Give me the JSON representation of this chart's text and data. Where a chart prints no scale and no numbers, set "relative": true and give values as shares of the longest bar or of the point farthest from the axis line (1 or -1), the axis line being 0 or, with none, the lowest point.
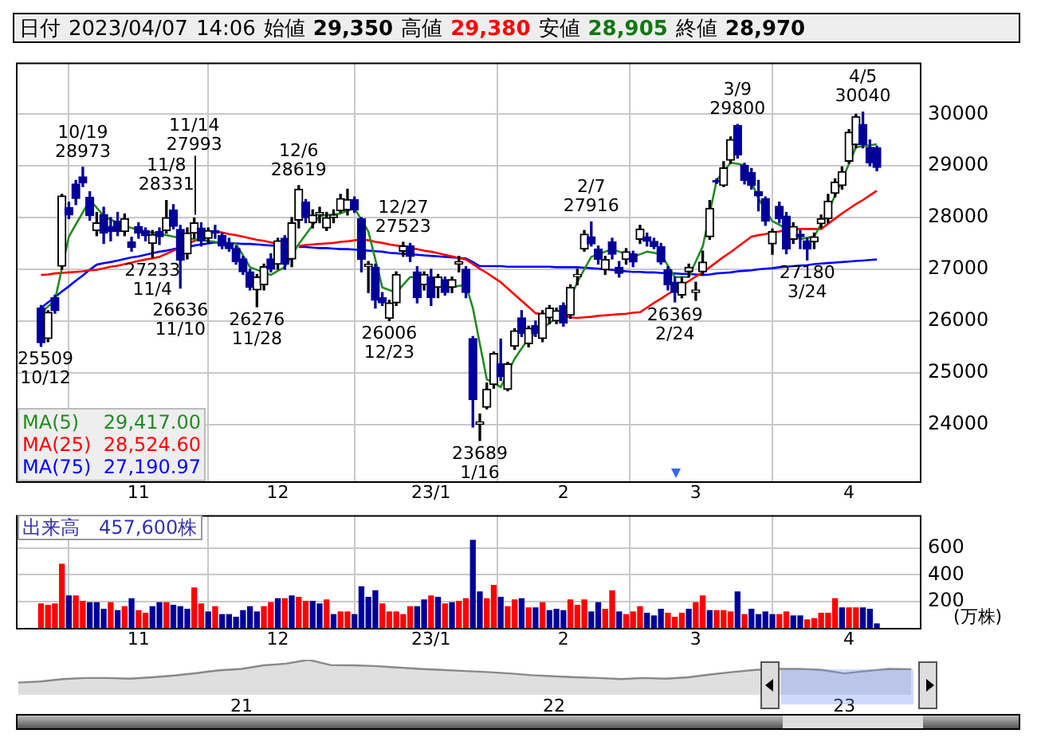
{
  "chart_data": [
    {
      "type": "candlestick",
      "title": "日付 2023/04/07 14:06 始値 29,350 高値 29,380 安値 28,905 終値 28,970",
      "categories": [
        null,
        null,
        null,
        null,
        null,
        null,
        null,
        null,
        null,
        null,
        null,
        null,
        null,
        null,
        "11",
        null,
        null,
        null,
        null,
        null,
        null,
        null,
        null,
        null,
        null,
        null,
        null,
        null,
        null,
        null,
        null,
        null,
        null,
        null,
        "12",
        null,
        null,
        null,
        null,
        null,
        null,
        null,
        null,
        null,
        null,
        null,
        null,
        null,
        null,
        null,
        null,
        null,
        null,
        null,
        null,
        null,
        "23/1",
        null,
        null,
        null,
        null,
        null,
        null,
        null,
        null,
        null,
        null,
        null,
        null,
        null,
        null,
        null,
        null,
        null,
        null,
        "2",
        null,
        null,
        null,
        null,
        null,
        null,
        null,
        null,
        null,
        null,
        null,
        null,
        null,
        null,
        null,
        null,
        null,
        null,
        "3",
        null,
        null,
        null,
        null,
        null,
        null,
        null,
        null,
        null,
        null,
        null,
        null,
        null,
        null,
        null,
        null,
        null,
        null,
        null,
        null,
        null,
        "4",
        null,
        null,
        null,
        null
      ],
      "ohlc": [
        [
          26250,
          26300,
          25509,
          25580
        ],
        [
          25660,
          26200,
          25600,
          26170
        ],
        [
          26450,
          26500,
          26150,
          26200
        ],
        [
          27060,
          28450,
          27000,
          28420
        ],
        [
          28190,
          28300,
          27980,
          28050
        ],
        [
          28650,
          28720,
          28250,
          28370
        ],
        [
          28790,
          28973,
          28600,
          28670
        ],
        [
          28390,
          28500,
          27950,
          28040
        ],
        [
          27750,
          28100,
          27650,
          27900
        ],
        [
          28060,
          28200,
          27500,
          27700
        ],
        [
          27830,
          28000,
          27550,
          27730
        ],
        [
          27930,
          28100,
          27650,
          27730
        ],
        [
          27730,
          28070,
          27650,
          27980
        ],
        [
          27530,
          27620,
          27350,
          27420
        ],
        [
          27830,
          27900,
          27600,
          27700
        ],
        [
          27750,
          27800,
          27550,
          27650
        ],
        [
          27500,
          27750,
          27233,
          27670
        ],
        [
          27730,
          27800,
          27480,
          27630
        ],
        [
          27750,
          28331,
          27700,
          28000
        ],
        [
          28150,
          28250,
          27780,
          27830
        ],
        [
          27770,
          27850,
          26636,
          27180
        ],
        [
          27300,
          27800,
          27200,
          27700
        ],
        [
          27700,
          27993,
          27600,
          27900
        ],
        [
          27800,
          27900,
          27450,
          27550
        ],
        [
          27600,
          27800,
          27500,
          27750
        ],
        [
          27750,
          27850,
          27600,
          27700
        ],
        [
          27650,
          27700,
          27400,
          27450
        ],
        [
          27500,
          27600,
          27350,
          27400
        ],
        [
          27400,
          27450,
          27100,
          27150
        ],
        [
          27200,
          27250,
          26900,
          26950
        ],
        [
          26950,
          27000,
          26600,
          26650
        ],
        [
          26600,
          26900,
          26276,
          26850
        ],
        [
          26700,
          27100,
          26600,
          27050
        ],
        [
          27200,
          27300,
          26950,
          27000
        ],
        [
          27100,
          27600,
          27000,
          27550
        ],
        [
          27600,
          27650,
          27000,
          27100
        ],
        [
          27200,
          28000,
          27050,
          27900
        ],
        [
          27950,
          28619,
          27800,
          28550
        ],
        [
          28300,
          28350,
          27900,
          28000
        ],
        [
          27900,
          28150,
          27800,
          28050
        ],
        [
          28050,
          28200,
          27900,
          28100
        ],
        [
          27800,
          28100,
          27750,
          28000
        ],
        [
          28000,
          28150,
          27900,
          28050
        ],
        [
          28130,
          28450,
          28100,
          28370
        ],
        [
          28150,
          28550,
          28050,
          28350
        ],
        [
          28350,
          28400,
          28100,
          28150
        ],
        [
          27980,
          28000,
          26950,
          27190
        ],
        [
          27050,
          27150,
          26550,
          27100
        ],
        [
          27040,
          27100,
          26250,
          26400
        ],
        [
          26450,
          26550,
          26300,
          26350
        ],
        [
          26050,
          26400,
          26006,
          26350
        ],
        [
          26350,
          26950,
          26300,
          26900
        ],
        [
          27350,
          27523,
          27250,
          27450
        ],
        [
          27450,
          27500,
          27150,
          27250
        ],
        [
          26950,
          27050,
          26350,
          26450
        ],
        [
          26700,
          26950,
          26600,
          26900
        ],
        [
          26850,
          27000,
          26300,
          26450
        ],
        [
          26650,
          26900,
          26450,
          26850
        ],
        [
          26800,
          26850,
          26500,
          26550
        ],
        [
          26650,
          26850,
          26550,
          26800
        ],
        [
          27100,
          27250,
          26950,
          27150
        ],
        [
          27000,
          27050,
          26450,
          26550
        ],
        [
          25660,
          25700,
          23950,
          24480
        ],
        [
          24000,
          24200,
          23689,
          24050
        ],
        [
          24330,
          24800,
          24300,
          24680
        ],
        [
          24770,
          25400,
          24700,
          25370
        ],
        [
          25170,
          25650,
          24850,
          24920
        ],
        [
          24680,
          25200,
          24650,
          25170
        ],
        [
          25510,
          25850,
          25450,
          25810
        ],
        [
          26060,
          26200,
          25700,
          25760
        ],
        [
          25560,
          25900,
          25500,
          25860
        ],
        [
          25910,
          26000,
          25700,
          25760
        ],
        [
          25660,
          26200,
          25600,
          26150
        ],
        [
          26060,
          26300,
          25950,
          26250
        ],
        [
          26000,
          26250,
          25950,
          26200
        ],
        [
          26300,
          26350,
          25900,
          25960
        ],
        [
          26110,
          26700,
          26050,
          26650
        ],
        [
          26860,
          27000,
          26700,
          26900
        ],
        [
          27390,
          27750,
          27350,
          27680
        ],
        [
          27630,
          27916,
          27450,
          27490
        ],
        [
          27390,
          27450,
          27100,
          27190
        ],
        [
          26990,
          27250,
          26900,
          27190
        ],
        [
          27530,
          27600,
          27200,
          27290
        ],
        [
          27040,
          27150,
          26850,
          26920
        ],
        [
          27190,
          27400,
          27100,
          27340
        ],
        [
          27300,
          27350,
          27050,
          27140
        ],
        [
          27580,
          27850,
          27500,
          27780
        ],
        [
          27630,
          27700,
          27450,
          27540
        ],
        [
          27540,
          27600,
          27400,
          27440
        ],
        [
          27440,
          27500,
          27100,
          27140
        ],
        [
          26990,
          27050,
          26600,
          26700
        ],
        [
          26750,
          26850,
          26369,
          26550
        ],
        [
          26500,
          26850,
          26450,
          26750
        ],
        [
          26950,
          27100,
          26850,
          27040
        ],
        [
          26550,
          26750,
          26400,
          26600
        ],
        [
          26950,
          27350,
          26900,
          27140
        ],
        [
          27630,
          28330,
          27580,
          28180
        ],
        [
          28720,
          28750,
          28660,
          28690
        ],
        [
          28620,
          29080,
          28600,
          28960
        ],
        [
          29110,
          29560,
          29050,
          29510
        ],
        [
          29780,
          29800,
          29150,
          29210
        ],
        [
          29010,
          29050,
          28650,
          28720
        ],
        [
          28870,
          28950,
          28550,
          28620
        ],
        [
          28500,
          28720,
          28130,
          28420
        ],
        [
          28370,
          28400,
          27850,
          27930
        ],
        [
          27490,
          27780,
          27290,
          27730
        ],
        [
          28220,
          28300,
          27900,
          27980
        ],
        [
          28030,
          28100,
          27300,
          27390
        ],
        [
          27580,
          27900,
          27500,
          27830
        ],
        [
          27680,
          27750,
          27400,
          27630
        ],
        [
          27550,
          27600,
          27180,
          27390
        ],
        [
          27530,
          27700,
          27400,
          27630
        ],
        [
          27880,
          28050,
          27800,
          27980
        ],
        [
          27980,
          28450,
          27900,
          28320
        ],
        [
          28470,
          28750,
          28400,
          28690
        ],
        [
          28620,
          28980,
          28550,
          28890
        ],
        [
          29090,
          29700,
          29050,
          29650
        ],
        [
          29410,
          30000,
          29350,
          29950
        ],
        [
          29800,
          30040,
          29350,
          29410
        ],
        [
          29360,
          29500,
          29000,
          29060
        ],
        [
          29350,
          29380,
          28905,
          28970
        ]
      ],
      "colors": [
        "#000099",
        "#000000",
        "#000099",
        "#000000",
        "#000099",
        "#000099",
        "#000099",
        "#000099",
        "#000000",
        "#000099",
        "#000099",
        "#000099",
        "#000000",
        "#000099",
        "#000099",
        "#000099",
        "#000000",
        "#000099",
        "#000000",
        "#000099",
        "#000099",
        "#000000",
        "#000000",
        "#000099",
        "#000000",
        "#000099",
        "#000099",
        "#000099",
        "#000099",
        "#000099",
        "#000099",
        "#000000",
        "#000000",
        "#000099",
        "#000000",
        "#000099",
        "#000000",
        "#000000",
        "#000099",
        "#000000",
        "#000000",
        "#000000",
        "#000000",
        "#000000",
        "#000000",
        "#000099",
        "#000099",
        "#000000",
        "#000099",
        "#000099",
        "#000000",
        "#000000",
        "#000000",
        "#000099",
        "#000099",
        "#000000",
        "#000099",
        "#000000",
        "#000099",
        "#000000",
        "#000000",
        "#000099",
        "#000099",
        "#000000",
        "#000000",
        "#000000",
        "#000099",
        "#000000",
        "#000000",
        "#000099",
        "#000000",
        "#000099",
        "#000000",
        "#000000",
        "#000000",
        "#000099",
        "#000000",
        "#000000",
        "#000000",
        "#000099",
        "#000099",
        "#000000",
        "#000099",
        "#000099",
        "#000000",
        "#000099",
        "#000000",
        "#000099",
        "#000099",
        "#000099",
        "#000099",
        "#000099",
        "#000000",
        "#000000",
        "#000000",
        "#000000",
        "#000000",
        "#000099",
        "#000000",
        "#000000",
        "#000099",
        "#000099",
        "#000099",
        "#000099",
        "#000099",
        "#000000",
        "#000099",
        "#000099",
        "#000000",
        "#000099",
        "#000099",
        "#000000",
        "#000000",
        "#000000",
        "#000000",
        "#000000",
        "#000000",
        "#000000",
        "#000099",
        "#000099",
        "#000099"
      ],
      "series": [
        {
          "type": "line",
          "name": "MA(5) 29,417.00",
          "color": "#228b22",
          "values": [
            26150,
            26280,
            26400,
            27020,
            27630,
            27870,
            28100,
            28340,
            28190,
            28030,
            27960,
            27900,
            27830,
            27800,
            27760,
            27730,
            27710,
            27680,
            27660,
            27630,
            27610,
            27600,
            27580,
            27560,
            27550,
            27530,
            27520,
            27500,
            27490,
            27270,
            27040,
            26990,
            26940,
            26890,
            26970,
            27040,
            27270,
            27490,
            27670,
            27850,
            28030,
            28050,
            28060,
            28080,
            28130,
            28180,
            27960,
            27730,
            27190,
            26650,
            26600,
            26550,
            26700,
            26850,
            26850,
            26850,
            null,
            26750,
            26700,
            26650,
            26680,
            26700,
            26250,
            25560,
            24870,
            24800,
            24720,
            25000,
            25270,
            25470,
            25660,
            25760,
            25860,
            25960,
            26060,
            26150,
            26450,
            26750,
            27000,
            27240,
            27290,
            27340,
            27390,
            27340,
            27290,
            27240,
            27290,
            27340,
            27320,
            27290,
            27070,
            26850,
            26850,
            26850,
            27150,
            27440,
            28080,
            28720,
            28890,
            29060,
            29040,
            29010,
            28690,
            28370,
            28150,
            27930,
            27860,
            27780,
            27680,
            27580,
            27610,
            27630,
            27880,
            28130,
            28430,
            28720,
            29040,
            29360,
            29380,
            29400,
            29420
          ]
        },
        {
          "type": "line",
          "name": "MA(25) 28,524.60",
          "color": "#ff0000",
          "values": [
            26890,
            26900,
            26920,
            26930,
            26940,
            26950,
            26960,
            26980,
            26990,
            27020,
            27050,
            27070,
            27100,
            27130,
            27160,
            27190,
            27210,
            27240,
            27300,
            27360,
            27420,
            27480,
            27550,
            27610,
            null,
            27730,
            27710,
            27680,
            27660,
            27630,
            27600,
            27570,
            27550,
            27520,
            27490,
            null,
            null,
            27450,
            27470,
            27480,
            27490,
            27500,
            27510,
            27530,
            27540,
            27560,
            27580,
            27560,
            27530,
            27510,
            27480,
            27460,
            27440,
            27410,
            27390,
            27360,
            27340,
            27310,
            27280,
            27250,
            27220,
            27190,
            27100,
            27010,
            26930,
            26840,
            26750,
            26630,
            26510,
            26390,
            26270,
            26150,
            26130,
            null,
            null,
            26090,
            26070,
            26060,
            26070,
            26080,
            26100,
            26110,
            26120,
            26130,
            26140,
            26160,
            26170,
            26260,
            26350,
            26430,
            26520,
            26600,
            26690,
            26770,
            26860,
            26940,
            27040,
            27140,
            27240,
            27330,
            27430,
            27530,
            27630,
            27660,
            27680,
            27710,
            27730,
            27760,
            27780,
            27780,
            27780,
            27780,
            27780,
            27880,
            27980,
            28080,
            28170,
            28260,
            28340,
            28430,
            28520
          ]
        },
        {
          "type": "line",
          "name": "MA(75) 27,190.97",
          "color": "#0000ff",
          "values": [
            26250,
            26360,
            26460,
            26570,
            26670,
            26780,
            26880,
            26990,
            27090,
            27120,
            27140,
            27170,
            27200,
            27230,
            27250,
            27280,
            27310,
            27340,
            27360,
            27390,
            27410,
            27430,
            27460,
            27480,
            27500,
            27520,
            27510,
            27510,
            27500,
            27490,
            27490,
            27480,
            27470,
            27460,
            27460,
            null,
            null,
            27430,
            27430,
            27420,
            27410,
            27410,
            27400,
            27390,
            27390,
            27380,
            27370,
            27360,
            27350,
            27340,
            27320,
            27310,
            27300,
            27290,
            27280,
            27270,
            27260,
            27250,
            27240,
            27230,
            27220,
            27210,
            27140,
            27060,
            27060,
            27060,
            27060,
            27050,
            27050,
            27050,
            27050,
            27050,
            27050,
            27050,
            27040,
            27040,
            27040,
            27040,
            27030,
            27020,
            27010,
            27000,
            26990,
            26970,
            26960,
            26950,
            26950,
            26940,
            26940,
            26930,
            26920,
            26920,
            26910,
            26910,
            26900,
            26890,
            26900,
            26920,
            26930,
            26940,
            26960,
            26970,
            26980,
            27000,
            27010,
            27020,
            27040,
            27050,
            27060,
            27070,
            27080,
            27100,
            27110,
            27120,
            27130,
            27140,
            27150,
            27160,
            27170,
            27180,
            27190
          ]
        }
      ],
      "annotations": [
        {
          "text": "10/19\n28973",
          "y": 28973
        },
        {
          "text": "11/8\n28331",
          "y": 28331
        },
        {
          "text": "11/14\n27993",
          "y": 27993
        },
        {
          "text": "27233\n11/4",
          "y": 27233
        },
        {
          "text": "26636\n11/10",
          "y": 26636
        },
        {
          "text": "25509\n10/12",
          "y": 25509
        },
        {
          "text": "26276\n11/28",
          "y": 26276
        },
        {
          "text": "12/6\n28619",
          "y": 28619
        },
        {
          "text": "12/27\n27523",
          "y": 27523
        },
        {
          "text": "26006\n12/23",
          "y": 26006
        },
        {
          "text": "23689\n1/16",
          "y": 23689
        },
        {
          "text": "2/7\n27916",
          "y": 27916
        },
        {
          "text": "26369\n2/24",
          "y": 26369
        },
        {
          "text": "3/9\n29800",
          "y": 29800
        },
        {
          "text": "27180\n3/24",
          "y": 27180
        },
        {
          "text": "4/5\n30040",
          "y": 30040
        }
      ],
      "ylim": [
        22900,
        31000
      ],
      "yticks": [
        24000,
        25000,
        26000,
        27000,
        28000,
        29000,
        30000
      ],
      "grid": true,
      "legend": "bottom left",
      "marker": "none",
      "line_style": "solid"
    },
    {
      "type": "bar",
      "title": "出来高　457,600株",
      "ylabel": "(万株)",
      "categories": [
        null,
        null,
        null,
        null,
        null,
        null,
        null,
        null,
        null,
        null,
        null,
        null,
        null,
        null,
        "11",
        null,
        null,
        null,
        null,
        null,
        null,
        null,
        null,
        null,
        null,
        null,
        null,
        null,
        null,
        null,
        null,
        null,
        null,
        null,
        "12",
        null,
        null,
        null,
        null,
        null,
        null,
        null,
        null,
        null,
        null,
        null,
        null,
        null,
        null,
        null,
        null,
        null,
        null,
        null,
        null,
        null,
        "23/1",
        null,
        null,
        null,
        null,
        null,
        null,
        null,
        null,
        null,
        null,
        null,
        null,
        null,
        null,
        null,
        null,
        null,
        null,
        "2",
        null,
        null,
        null,
        null,
        null,
        null,
        null,
        null,
        null,
        null,
        null,
        null,
        null,
        null,
        null,
        null,
        null,
        null,
        "3",
        null,
        null,
        null,
        null,
        null,
        null,
        null,
        null,
        null,
        null,
        null,
        null,
        null,
        null,
        null,
        null,
        null,
        null,
        null,
        null,
        null,
        "4",
        null,
        null,
        null,
        null
      ],
      "values": [
        180,
        170,
        180,
        480,
        240,
        240,
        200,
        190,
        190,
        140,
        190,
        130,
        160,
        220,
        130,
        110,
        160,
        190,
        190,
        170,
        160,
        140,
        300,
        180,
        120,
        160,
        100,
        100,
        80,
        130,
        160,
        120,
        160,
        190,
        220,
        220,
        240,
        230,
        200,
        200,
        180,
        210,
        100,
        120,
        120,
        100,
        310,
        230,
        280,
        180,
        120,
        120,
        100,
        160,
        160,
        210,
        240,
        230,
        180,
        190,
        200,
        220,
        660,
        270,
        220,
        320,
        230,
        160,
        210,
        220,
        150,
        150,
        190,
        130,
        140,
        130,
        210,
        170,
        210,
        120,
        190,
        140,
        280,
        120,
        100,
        120,
        160,
        110,
        90,
        140,
        110,
        80,
        110,
        140,
        190,
        240,
        130,
        130,
        130,
        120,
        270,
        100,
        140,
        100,
        120,
        100,
        100,
        120,
        90,
        90,
        60,
        70,
        110,
        110,
        220,
        150,
        150,
        150,
        150,
        140,
        30
      ],
      "colors": [
        "#ff0000",
        "#ff0000",
        "#ff0000",
        "#ff0000",
        "#000099",
        "#ff0000",
        "#ff0000",
        "#000099",
        "#000099",
        "#000099",
        "#ff0000",
        "#000099",
        "#ff0000",
        "#000099",
        "#ff0000",
        "#ff0000",
        "#000099",
        "#000099",
        "#ff0000",
        "#000099",
        "#000099",
        "#000099",
        "#ff0000",
        "#ff0000",
        "#000099",
        "#ff0000",
        "#000099",
        "#000099",
        "#000099",
        "#000099",
        "#000099",
        "#000099",
        "#ff0000",
        "#ff0000",
        "#000099",
        "#ff0000",
        "#000099",
        "#ff0000",
        "#ff0000",
        "#000099",
        "#000099",
        "#ff0000",
        "#000099",
        "#ff0000",
        "#ff0000",
        "#000099",
        "#000099",
        "#000099",
        "#000099",
        "#ff0000",
        "#ff0000",
        "#ff0000",
        "#ff0000",
        "#ff0000",
        "#000099",
        "#000099",
        "#ff0000",
        "#000099",
        "#ff0000",
        "#000099",
        "#ff0000",
        "#ff0000",
        "#000099",
        "#000099",
        "#ff0000",
        "#ff0000",
        "#000099",
        "#ff0000",
        "#ff0000",
        "#000099",
        "#ff0000",
        "#000099",
        "#ff0000",
        "#000099",
        "#000099",
        "#000099",
        "#ff0000",
        "#ff0000",
        "#ff0000",
        "#000099",
        "#000099",
        "#ff0000",
        "#ff0000",
        "#000099",
        "#ff0000",
        "#ff0000",
        "#ff0000",
        "#000099",
        "#000099",
        "#000099",
        "#ff0000",
        "#ff0000",
        "#ff0000",
        "#000099",
        "#ff0000",
        "#ff0000",
        "#000099",
        "#ff0000",
        "#ff0000",
        "#ff0000",
        "#000099",
        "#ff0000",
        "#000099",
        "#000099",
        "#000099",
        "#000099",
        "#ff0000",
        "#ff0000",
        "#000099",
        "#000099",
        "#ff0000",
        "#ff0000",
        "#ff0000",
        "#ff0000",
        "#ff0000",
        "#000099",
        "#ff0000",
        "#ff0000",
        "#000099",
        "#000099",
        "#000099"
      ],
      "ylim": [
        0,
        850
      ],
      "yticks": [
        200,
        400,
        600
      ],
      "grid": true,
      "legend": false
    },
    {
      "type": "area",
      "relative": true,
      "color": "#888888",
      "tick_labels": "x",
      "grid": false,
      "legend": false,
      "categories": [
        null,
        null,
        null,
        null,
        null,
        null,
        null,
        null,
        null,
        null,
        "21",
        null,
        null,
        null,
        null,
        null,
        null,
        null,
        null,
        null,
        null,
        null,
        null,
        null,
        "22",
        null,
        null,
        null,
        null,
        null,
        null,
        null,
        null,
        null,
        null,
        null,
        null,
        "23",
        null,
        null,
        null
      ],
      "values": [
        0.35,
        0.38,
        0.45,
        0.48,
        0.48,
        0.46,
        0.5,
        0.55,
        0.62,
        0.7,
        0.74,
        0.84,
        0.89,
        1,
        0.85,
        0.84,
        0.82,
        0.78,
        0.74,
        0.71,
        0.68,
        0.65,
        0.61,
        0.56,
        0.53,
        0.5,
        0.48,
        0.45,
        0.48,
        0.46,
        0.5,
        0.58,
        0.65,
        0.71,
        0.74,
        0.74,
        0.71,
        0.61,
        0.68,
        0.74,
        0.73
      ]
    }
  ]
}
